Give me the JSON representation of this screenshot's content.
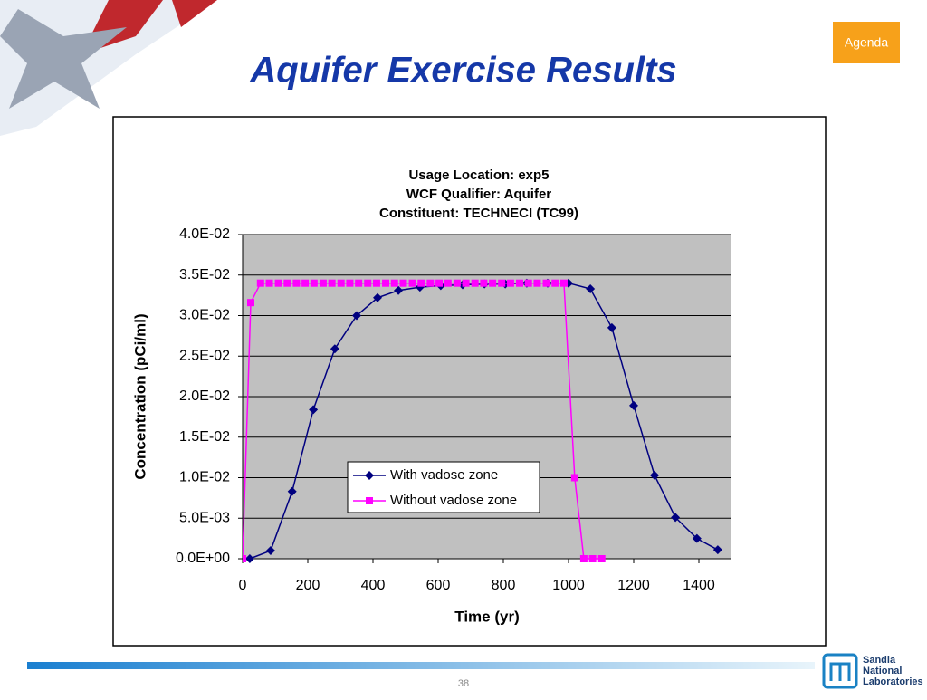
{
  "slide": {
    "title": "Aquifer Exercise Results",
    "agenda": "Agenda",
    "page": "38",
    "logo": [
      "Sandia",
      "National",
      "Laboratories"
    ]
  },
  "chart_data": {
    "type": "line",
    "title": [
      "Usage Location: exp5",
      "WCF Qualifier: Aquifer",
      "Constituent: TECHNECI (TC99)"
    ],
    "x_label": "Time (yr)",
    "y_label": "Concentration (pCi/ml)",
    "xlim": [
      0,
      1500
    ],
    "xticks": [
      0,
      200,
      400,
      600,
      800,
      1000,
      1200,
      1400
    ],
    "ylim": [
      0,
      0.04
    ],
    "yticks": [
      {
        "value": 0,
        "label": "0.0E+00"
      },
      {
        "value": 0.005,
        "label": "5.0E-03"
      },
      {
        "value": 0.01,
        "label": "1.0E-02"
      },
      {
        "value": 0.015,
        "label": "1.5E-02"
      },
      {
        "value": 0.02,
        "label": "2.0E-02"
      },
      {
        "value": 0.025,
        "label": "2.5E-02"
      },
      {
        "value": 0.03,
        "label": "3.0E-02"
      },
      {
        "value": 0.035,
        "label": "3.5E-02"
      },
      {
        "value": 0.04,
        "label": "4.0E-02"
      }
    ],
    "grid": true,
    "plot_background": "#c0c0c0",
    "series": [
      {
        "name": "With vadose zone",
        "color": "#000080",
        "marker": "diamond",
        "x": [
          22,
          86,
          152,
          217,
          283,
          350,
          414,
          478,
          544,
          608,
          675,
          742,
          806,
          872,
          936,
          1000,
          1067,
          1133,
          1200,
          1264,
          1328,
          1394,
          1458
        ],
        "values": [
          0,
          0.001,
          0.0083,
          0.0184,
          0.0259,
          0.03,
          0.0322,
          0.0331,
          0.0335,
          0.0337,
          0.0338,
          0.0339,
          0.0339,
          0.034,
          0.034,
          0.034,
          0.0333,
          0.0285,
          0.0189,
          0.0103,
          0.0051,
          0.0025,
          0.0011
        ]
      },
      {
        "name": "Without vadose zone",
        "color": "#ff00ff",
        "marker": "square",
        "x": [
          0,
          25,
          55,
          82,
          110,
          137,
          165,
          192,
          219,
          247,
          274,
          302,
          329,
          356,
          384,
          411,
          439,
          466,
          493,
          521,
          548,
          576,
          603,
          630,
          658,
          685,
          713,
          740,
          767,
          795,
          822,
          850,
          877,
          904,
          932,
          959,
          986,
          1019,
          1047,
          1074,
          1102
        ],
        "values": [
          0,
          0.0316,
          0.034,
          0.034,
          0.034,
          0.034,
          0.034,
          0.034,
          0.034,
          0.034,
          0.034,
          0.034,
          0.034,
          0.034,
          0.034,
          0.034,
          0.034,
          0.034,
          0.034,
          0.034,
          0.034,
          0.034,
          0.034,
          0.034,
          0.034,
          0.034,
          0.034,
          0.034,
          0.034,
          0.034,
          0.034,
          0.034,
          0.034,
          0.034,
          0.034,
          0.034,
          0.034,
          0.01,
          0,
          0,
          0
        ]
      }
    ]
  }
}
